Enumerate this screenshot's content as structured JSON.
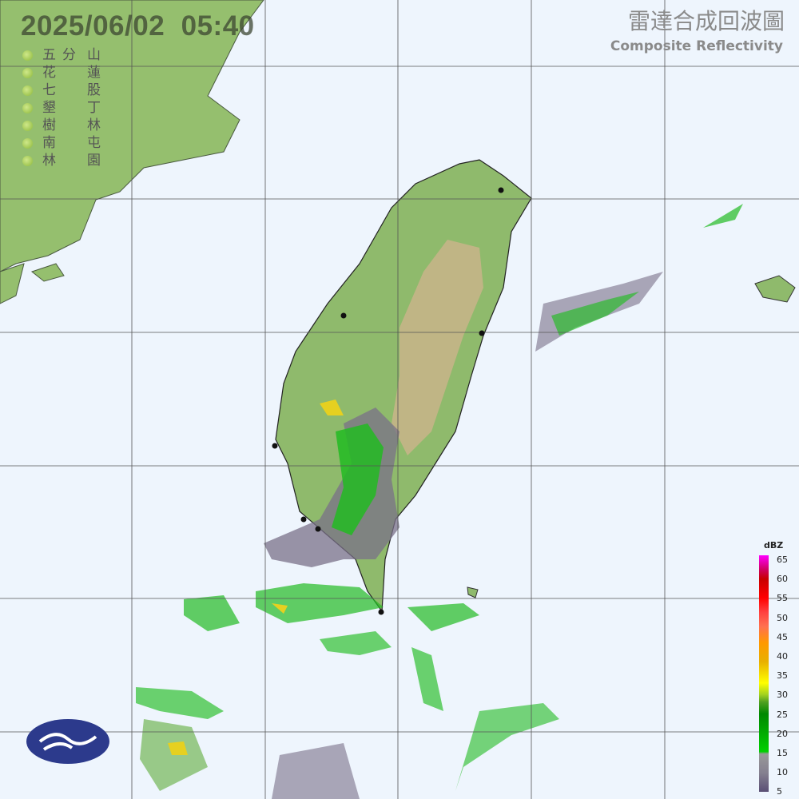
{
  "header": {
    "timestamp": "2025/06/02  05:40",
    "title_zh": "雷達合成回波圖",
    "title_en": "Composite Reflectivity"
  },
  "stations": [
    {
      "a": "五分",
      "b": "山"
    },
    {
      "a": "花",
      "b": "蓮"
    },
    {
      "a": "七",
      "b": "股"
    },
    {
      "a": "墾",
      "b": "丁"
    },
    {
      "a": "樹",
      "b": "林"
    },
    {
      "a": "南",
      "b": "屯"
    },
    {
      "a": "林",
      "b": "園"
    }
  ],
  "legend": {
    "unit": "dBZ",
    "ticks": [
      "65",
      "60",
      "55",
      "50",
      "45",
      "40",
      "35",
      "30",
      "25",
      "20",
      "15",
      "10",
      "5"
    ]
  },
  "colors": {
    "ocean": "#eef5fd",
    "land": "#8fba6c",
    "mountain": "#c9b48a",
    "echo_weak": "#7a7088",
    "echo_green": "#22bb22",
    "echo_yellow": "#e6d020"
  },
  "logo": {
    "name": "cwa-logo-icon"
  }
}
